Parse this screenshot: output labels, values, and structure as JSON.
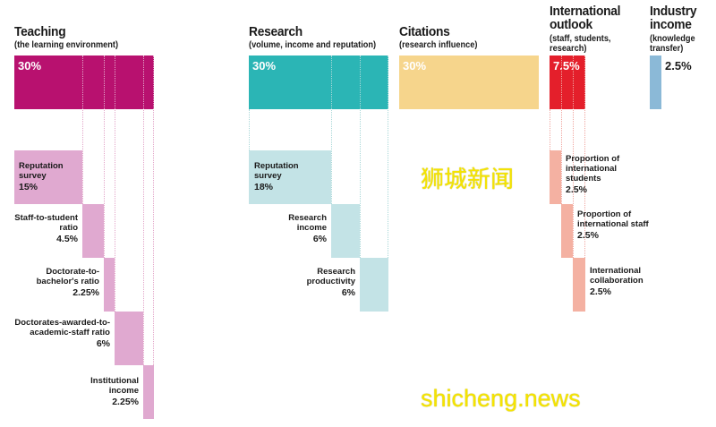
{
  "teaching": {
    "title": "Teaching",
    "subtitle": "(the learning environment)",
    "weight": "30%",
    "color": "#b8116f",
    "sub_color": "#e0a9d0",
    "items": [
      {
        "label": "Reputation survey",
        "value": "15%"
      },
      {
        "label": "Staff-to-student ratio",
        "value": "4.5%"
      },
      {
        "label": "Doctorate-to-bachelor's ratio",
        "value": "2.25%"
      },
      {
        "label": "Doctorates-awarded-to-academic-staff ratio",
        "value": "6%"
      },
      {
        "label": "Institutional income",
        "value": "2.25%"
      }
    ]
  },
  "research": {
    "title": "Research",
    "subtitle": "(volume, income and reputation)",
    "weight": "30%",
    "color": "#2bb5b5",
    "sub_color": "#c3e3e6",
    "items": [
      {
        "label": "Reputation survey",
        "value": "18%"
      },
      {
        "label": "Research income",
        "value": "6%"
      },
      {
        "label": "Research productivity",
        "value": "6%"
      }
    ]
  },
  "citations": {
    "title": "Citations",
    "subtitle": "(research influence)",
    "weight": "30%",
    "color": "#f6d58c"
  },
  "international": {
    "title": "International outlook",
    "subtitle": "(staff, students, research)",
    "weight": "7.5%",
    "color": "#e41f2b",
    "sub_color": "#f4b1a2",
    "items": [
      {
        "label": "Proportion of international students",
        "value": "2.5%"
      },
      {
        "label": "Proportion of international staff",
        "value": "2.5%"
      },
      {
        "label": "International collaboration",
        "value": "2.5%"
      }
    ]
  },
  "industry": {
    "title": "Industry income",
    "subtitle": "(knowledge transfer)",
    "weight": "2.5%",
    "color": "#8bb9d7"
  },
  "watermarks": {
    "chinese": "狮城新闻",
    "latin": "shicheng.news"
  }
}
